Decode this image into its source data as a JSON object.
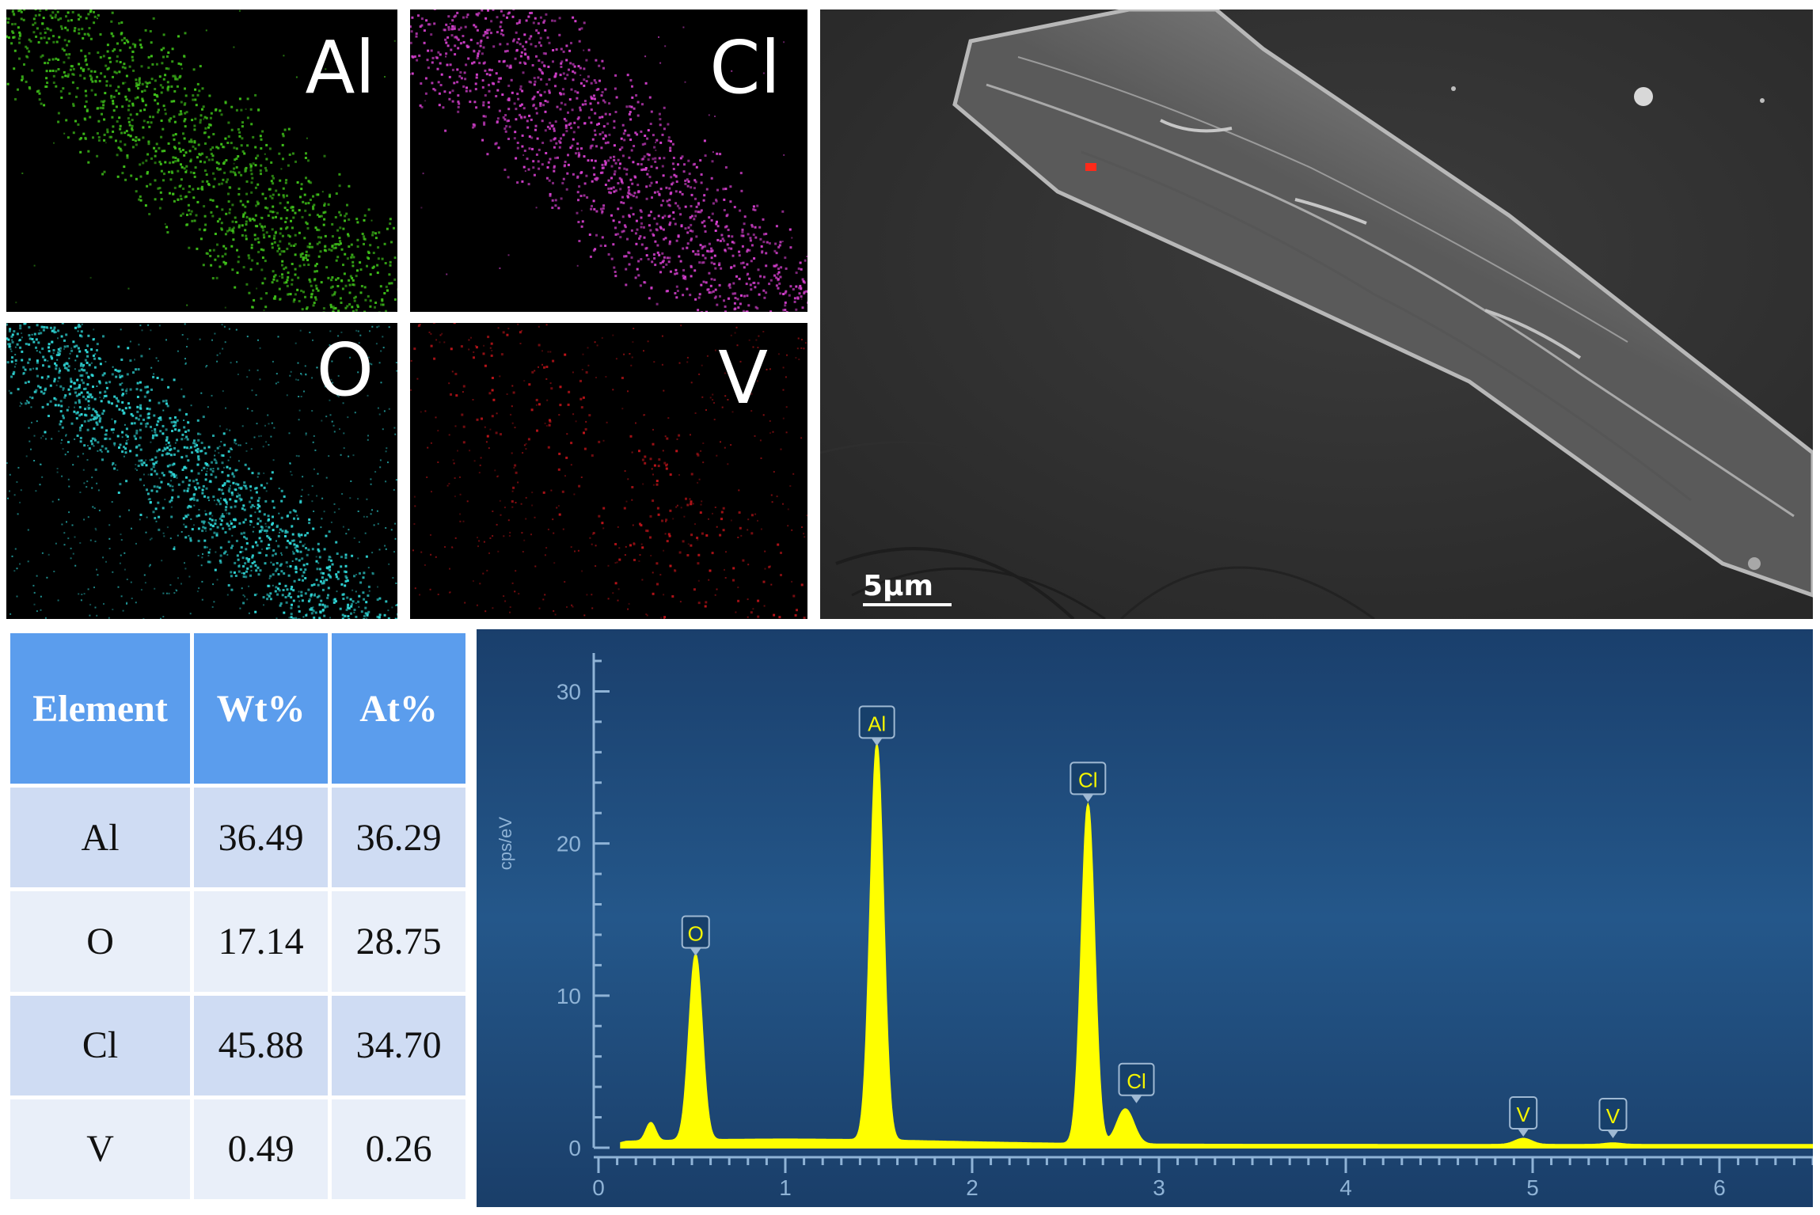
{
  "element_maps": [
    {
      "label": "Al",
      "color": "#3fc21a"
    },
    {
      "label": "Cl",
      "color": "#d640cf"
    },
    {
      "label": "O",
      "color": "#2fd8d8"
    },
    {
      "label": "V",
      "color": "#c0141a"
    }
  ],
  "sem": {
    "scale_bar": "5μm"
  },
  "table": {
    "headers": [
      "Element",
      "Wt%",
      "At%"
    ],
    "rows": [
      {
        "element": "Al",
        "wt": "36.49",
        "at": "36.29"
      },
      {
        "element": "O",
        "wt": "17.14",
        "at": "28.75"
      },
      {
        "element": "Cl",
        "wt": "45.88",
        "at": "34.70"
      },
      {
        "element": "V",
        "wt": "0.49",
        "at": "0.26"
      }
    ]
  },
  "chart_data": {
    "type": "area",
    "ylabel": "cps/eV",
    "xlim": [
      0,
      6.5
    ],
    "ylim": [
      0,
      32
    ],
    "x_ticks": [
      "0",
      "1",
      "2",
      "3",
      "4",
      "5",
      "6"
    ],
    "y_ticks": [
      "0",
      "10",
      "20",
      "30"
    ],
    "grid": false,
    "fill_color": "#ffff00",
    "background": "#1d4a7a",
    "peaks": [
      {
        "label": "O",
        "x": 0.52,
        "y": 12.2
      },
      {
        "label": "Al",
        "x": 1.49,
        "y": 26.0
      },
      {
        "label": "Cl",
        "x": 2.62,
        "y": 22.3
      },
      {
        "label": "Cl",
        "x": 2.82,
        "y": 2.3
      },
      {
        "label": "V",
        "x": 4.95,
        "y": 0.4
      },
      {
        "label": "V",
        "x": 5.43,
        "y": 0.1
      }
    ]
  }
}
